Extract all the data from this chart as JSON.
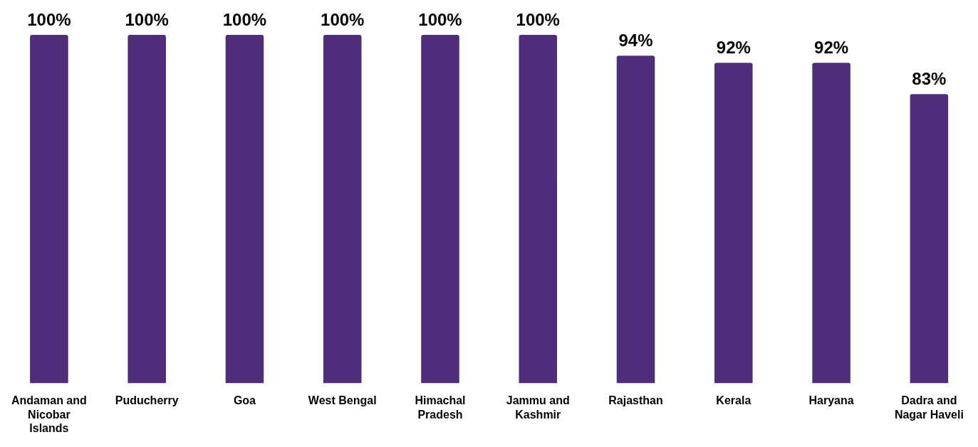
{
  "chart_data": {
    "type": "bar",
    "categories": [
      "Andaman and Nicobar Islands",
      "Puducherry",
      "Goa",
      "West Bengal",
      "Himachal Pradesh",
      "Jammu and Kashmir",
      "Rajasthan",
      "Kerala",
      "Haryana",
      "Dadra and Nagar Haveli"
    ],
    "values": [
      100,
      100,
      100,
      100,
      100,
      100,
      94,
      92,
      92,
      83
    ],
    "value_labels": [
      "100%",
      "100%",
      "100%",
      "100%",
      "100%",
      "100%",
      "94%",
      "92%",
      "92%",
      "83%"
    ],
    "color": "#4e2d7a",
    "grid": false,
    "legend": false
  }
}
